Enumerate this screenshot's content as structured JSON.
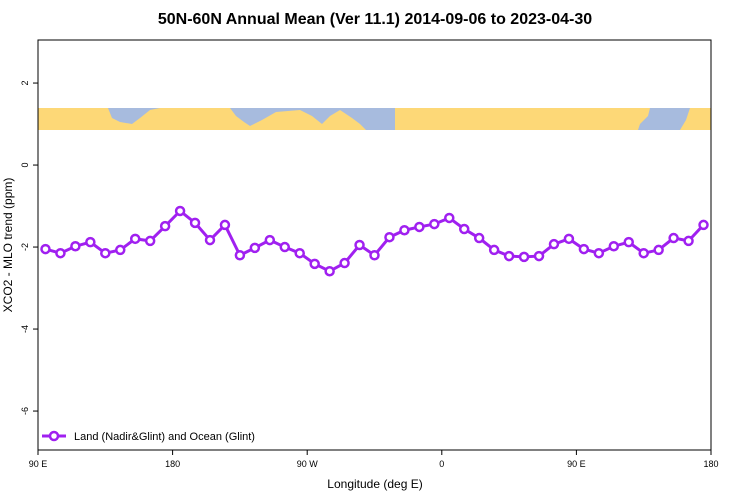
{
  "chart_data": {
    "type": "line",
    "title": "50N-60N Annual Mean (Ver 11.1)   2014-09-06 to 2023-04-30",
    "x_label": "Longitude (deg E)",
    "y_label": "XCO2 - MLO trend (ppm)",
    "x": [
      95,
      105,
      115,
      125,
      135,
      145,
      155,
      165,
      175,
      185,
      195,
      205,
      215,
      225,
      235,
      245,
      255,
      265,
      275,
      285,
      295,
      305,
      315,
      325,
      335,
      345,
      355,
      365,
      375,
      385,
      395,
      405,
      415,
      425,
      435,
      445,
      455,
      465,
      475,
      485,
      495,
      505,
      515,
      525,
      535
    ],
    "series": [
      {
        "name": "Land (Nadir&Glint) and Ocean (Glint)",
        "color": "#a020f0",
        "values": [
          -2.05,
          -2.15,
          -1.98,
          -1.88,
          -2.15,
          -2.07,
          -1.8,
          -1.85,
          -1.49,
          -1.12,
          -1.41,
          -1.83,
          -1.46,
          -2.2,
          -2.02,
          -1.83,
          -2.0,
          -2.15,
          -2.41,
          -2.59,
          -2.39,
          -1.95,
          -2.2,
          -1.76,
          -1.59,
          -1.51,
          -1.44,
          -1.29,
          -1.56,
          -1.78,
          -2.07,
          -2.22,
          -2.24,
          -2.22,
          -1.93,
          -1.8,
          -2.05,
          -2.15,
          -1.98,
          -1.88,
          -2.15,
          -2.07,
          -1.78,
          -1.85,
          -1.46
        ]
      }
    ],
    "xlim": [
      90,
      540
    ],
    "xticks": [
      {
        "value": 90,
        "label": "90 E"
      },
      {
        "value": 180,
        "label": "180"
      },
      {
        "value": 270,
        "label": "90 W"
      },
      {
        "value": 360,
        "label": "0"
      },
      {
        "value": 450,
        "label": "90 E"
      },
      {
        "value": 540,
        "label": "180"
      }
    ],
    "ylim": [
      -6.95,
      3.05
    ],
    "yticks": [
      -6,
      -4,
      -2,
      0,
      2
    ],
    "legend": "bottomleft"
  }
}
